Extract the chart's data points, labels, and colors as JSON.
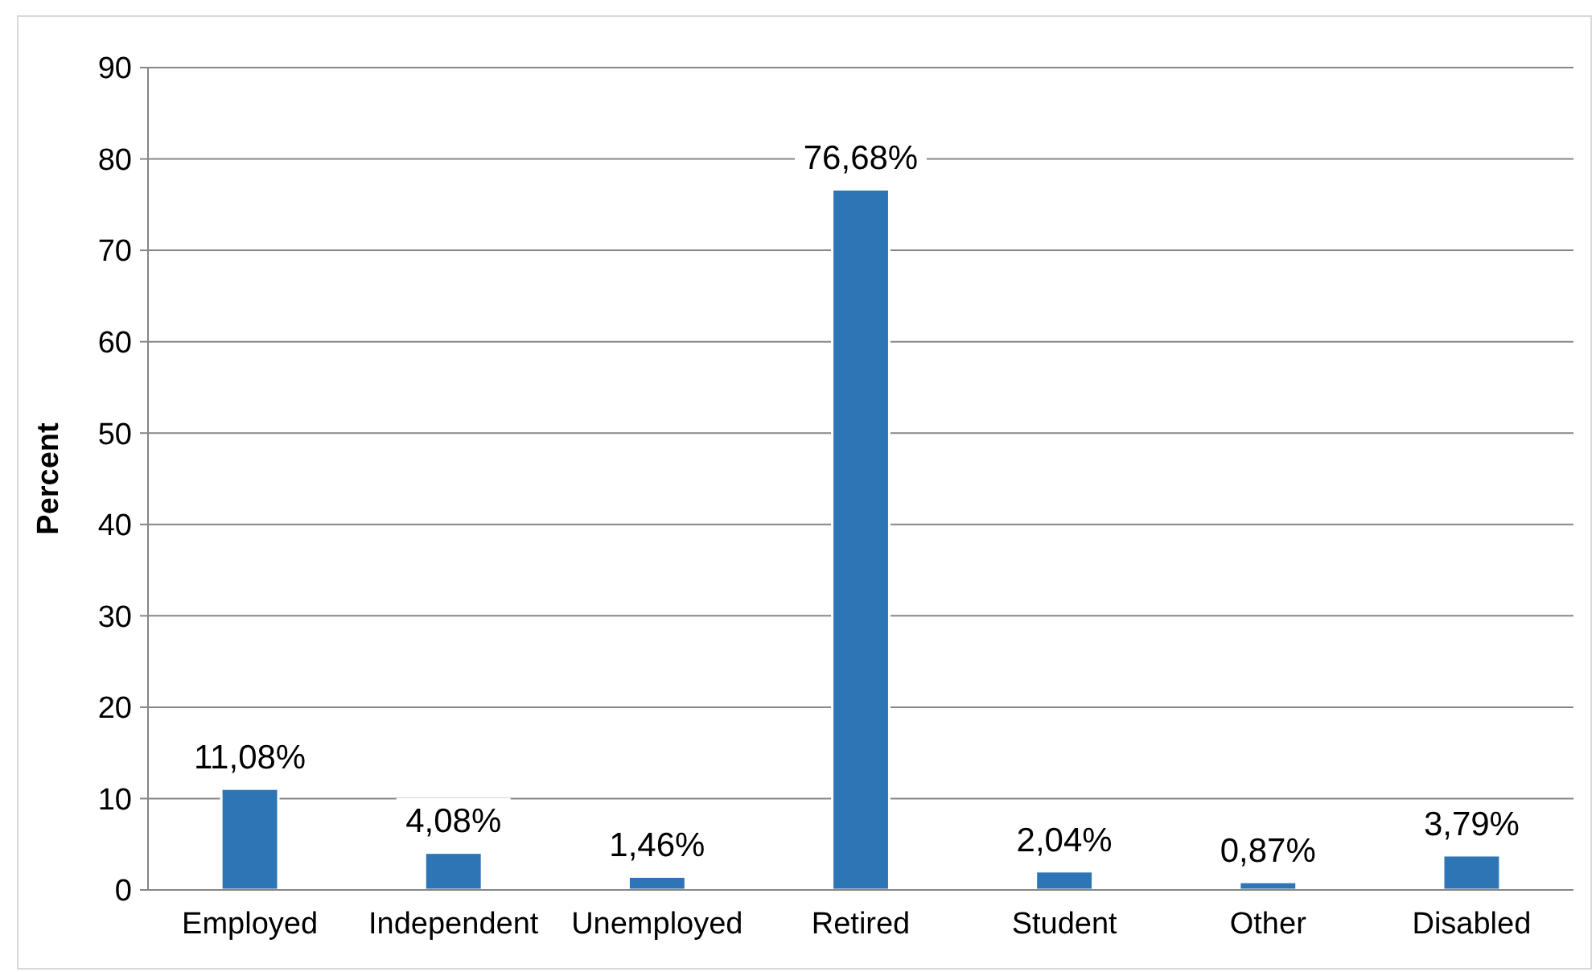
{
  "chart_data": {
    "type": "bar",
    "ylabel": "Percent",
    "categories": [
      "Employed",
      "Independent",
      "Unemployed",
      "Retired",
      "Student",
      "Other",
      "Disabled"
    ],
    "values": [
      11.08,
      4.08,
      1.46,
      76.68,
      2.04,
      0.87,
      3.79
    ],
    "value_labels": [
      "11,08%",
      "4,08%",
      "1,46%",
      "76,68%",
      "2,04%",
      "0,87%",
      "3,79%"
    ],
    "color": "#2e75b6",
    "ylim": [
      0,
      90
    ],
    "yticks": [
      0,
      10,
      20,
      30,
      40,
      50,
      60,
      70,
      80,
      90
    ],
    "grid": "y"
  }
}
